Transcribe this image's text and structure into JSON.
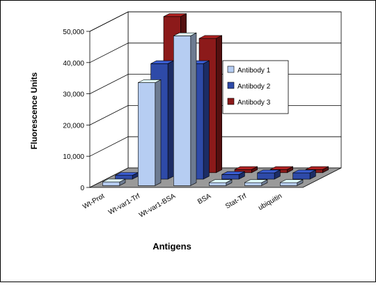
{
  "chart_data": {
    "type": "bar",
    "subtype": "3d-clustered-column",
    "title": "",
    "xlabel": "Antigens",
    "ylabel": "Fluorescence Units",
    "ylim": [
      0,
      50000
    ],
    "yticks": [
      0,
      10000,
      20000,
      30000,
      40000,
      50000
    ],
    "ytick_labels": [
      "0",
      "10,000",
      "20,000",
      "30,000",
      "40,000",
      "50,000"
    ],
    "grid": true,
    "legend_position": "right",
    "categories": [
      "Wt-Prot",
      "Wt-var1-Trf",
      "Wt-var1-BSA",
      "BSA",
      "Stat-Trf",
      "ubiquitin"
    ],
    "series": [
      {
        "name": "Antibody 1",
        "color": "#b6cdf2",
        "values": [
          1200,
          33000,
          48000,
          1000,
          1000,
          1000
        ]
      },
      {
        "name": "Antibody 2",
        "color": "#2e4aa8",
        "values": [
          1200,
          37000,
          37000,
          1500,
          2000,
          2000
        ]
      },
      {
        "name": "Antibody 3",
        "color": "#8c1a1a",
        "values": [
          0,
          50000,
          43000,
          1000,
          1000,
          1000
        ]
      }
    ]
  }
}
